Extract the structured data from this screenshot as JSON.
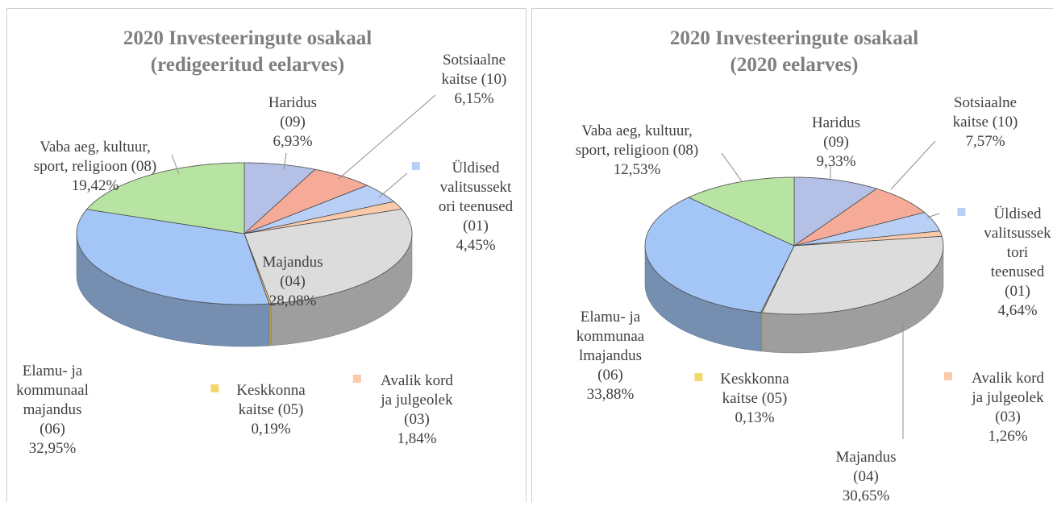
{
  "chart_data": [
    {
      "type": "pie",
      "title": [
        "2020 Investeeringute osakaal",
        "(redigeeritud eelarves)"
      ],
      "categories": [
        [
          "Haridus",
          "(09)"
        ],
        [
          "Sotsiaalne",
          "kaitse (10)"
        ],
        [
          "Üldised",
          "valitsussekt",
          "ori teenused",
          "(01)"
        ],
        [
          "Avalik kord",
          "ja julgeolek",
          "(03)"
        ],
        [
          "Majandus",
          "(04)"
        ],
        [
          "Keskkonna",
          "kaitse (05)"
        ],
        [
          "Elamu- ja",
          "kommunaal",
          "majandus",
          "(06)"
        ],
        [
          "Vaba aeg, kultuur,",
          "sport, religioon (08)"
        ]
      ],
      "values": [
        6.93,
        6.15,
        4.45,
        1.84,
        28.08,
        0.19,
        32.95,
        19.42
      ],
      "value_labels": [
        "6,93%",
        "6,15%",
        "4,45%",
        "1,84%",
        "28,08%",
        "0,19%",
        "32,95%",
        "19,42%"
      ],
      "colors": [
        "#b4c0e6",
        "#f5ab98",
        "#b9cff6",
        "#f8caa9",
        "#dcdcdc",
        "#f4d86e",
        "#a4c6f6",
        "#b8e4a3"
      ]
    },
    {
      "type": "pie",
      "title": [
        "2020 Investeeringute osakaal",
        "(2020 eelarves)"
      ],
      "categories": [
        [
          "Haridus",
          "(09)"
        ],
        [
          "Sotsiaalne",
          "kaitse (10)"
        ],
        [
          "Üldised",
          "valitsussek",
          "tori",
          "teenused",
          "(01)"
        ],
        [
          "Avalik kord",
          "ja julgeolek",
          "(03)"
        ],
        [
          "Majandus",
          "(04)"
        ],
        [
          "Keskkonna",
          "kaitse (05)"
        ],
        [
          "Elamu- ja",
          "kommunaa",
          "lmajandus",
          "(06)"
        ],
        [
          "Vaba aeg, kultuur,",
          "sport, religioon (08)"
        ]
      ],
      "values": [
        9.33,
        7.57,
        4.64,
        1.26,
        30.65,
        0.13,
        33.88,
        12.53
      ],
      "value_labels": [
        "9,33%",
        "7,57%",
        "4,64%",
        "1,26%",
        "30,65%",
        "0,13%",
        "33,88%",
        "12,53%"
      ],
      "colors": [
        "#b4c0e6",
        "#f5ab98",
        "#b9cff6",
        "#f8caa9",
        "#dcdcdc",
        "#f4d86e",
        "#a4c6f6",
        "#b8e4a3"
      ]
    }
  ]
}
